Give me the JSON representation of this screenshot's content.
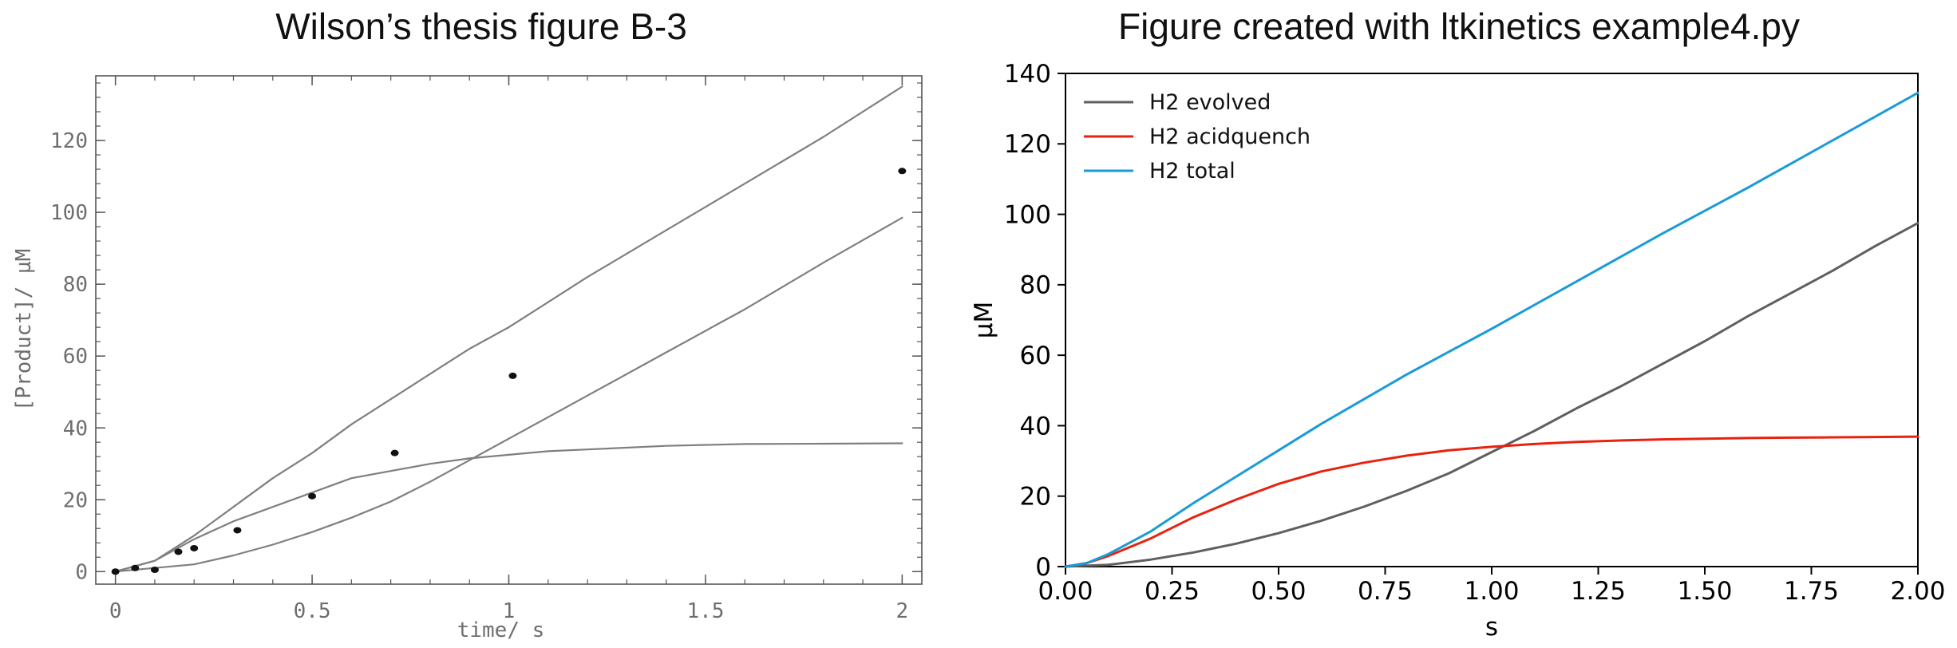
{
  "chart_data": [
    {
      "type": "line",
      "title": "Wilson’s thesis figure B-3",
      "xlabel": "time/ s",
      "ylabel": "[Product]/ µM",
      "xlim": [
        -0.05,
        2.05
      ],
      "ylim": [
        -3.5,
        138
      ],
      "xticks": [
        0,
        0.5,
        1,
        1.5,
        2
      ],
      "xtick_labels": [
        "0",
        "0.5",
        "1",
        "1.5",
        "2"
      ],
      "yticks": [
        0,
        20,
        40,
        60,
        80,
        100,
        120
      ],
      "ytick_labels": [
        "0",
        "20",
        "40",
        "60",
        "80",
        "100",
        "120"
      ],
      "grid": false,
      "series": [
        {
          "style": "line",
          "color": "#7f7f7f",
          "x": [
            0,
            0.1,
            0.2,
            0.3,
            0.4,
            0.5,
            0.6,
            0.7,
            0.8,
            0.9,
            1.0,
            1.2,
            1.4,
            1.6,
            1.8,
            2.0
          ],
          "values": [
            0,
            3,
            10,
            18,
            26,
            33,
            41,
            48,
            55,
            62,
            68,
            82,
            95,
            108,
            121,
            135
          ]
        },
        {
          "style": "line",
          "color": "#7f7f7f",
          "x": [
            0,
            0.1,
            0.2,
            0.3,
            0.4,
            0.5,
            0.6,
            0.7,
            0.8,
            0.9,
            1.0,
            1.1,
            1.2,
            1.4,
            1.6,
            1.8,
            2.0
          ],
          "values": [
            0,
            3,
            9,
            14,
            18,
            22,
            26,
            28,
            30,
            31.5,
            32.5,
            33.5,
            34,
            35,
            35.5,
            35.6,
            35.7
          ]
        },
        {
          "style": "line",
          "color": "#7f7f7f",
          "x": [
            0,
            0.2,
            0.3,
            0.4,
            0.5,
            0.6,
            0.7,
            0.8,
            0.9,
            1.0,
            1.2,
            1.4,
            1.6,
            1.8,
            2.0
          ],
          "values": [
            0,
            2,
            4.5,
            7.5,
            11,
            15,
            19.5,
            25,
            31,
            37,
            49,
            61,
            73,
            86,
            98.5
          ]
        },
        {
          "style": "points",
          "color": "#111111",
          "x": [
            0,
            0.05,
            0.1,
            0.16,
            0.2,
            0.31,
            0.5,
            0.71,
            1.01,
            2.0
          ],
          "values": [
            0,
            1,
            0.5,
            5.5,
            6.5,
            11.5,
            21,
            33,
            54.5,
            111.5
          ]
        }
      ]
    },
    {
      "type": "line",
      "title": "Figure created with ltkinetics example4.py",
      "xlabel": "s",
      "ylabel": "µM",
      "xlim": [
        0,
        2
      ],
      "ylim": [
        0,
        140
      ],
      "xticks": [
        0,
        0.25,
        0.5,
        0.75,
        1.0,
        1.25,
        1.5,
        1.75,
        2.0
      ],
      "xtick_labels": [
        "0.00",
        "0.25",
        "0.50",
        "0.75",
        "1.00",
        "1.25",
        "1.50",
        "1.75",
        "2.00"
      ],
      "yticks": [
        0,
        20,
        40,
        60,
        80,
        100,
        120,
        140
      ],
      "ytick_labels": [
        "0",
        "20",
        "40",
        "60",
        "80",
        "100",
        "120",
        "140"
      ],
      "grid": false,
      "legend": "top-left",
      "series": [
        {
          "name": "H2 evolved",
          "color": "#5f5f5f",
          "x": [
            0,
            0.1,
            0.2,
            0.3,
            0.4,
            0.5,
            0.6,
            0.7,
            0.8,
            0.9,
            1.0,
            1.1,
            1.2,
            1.3,
            1.4,
            1.5,
            1.6,
            1.7,
            1.8,
            1.9,
            2.0
          ],
          "values": [
            0,
            0.5,
            2,
            4,
            6.5,
            9.5,
            13,
            17,
            21.5,
            26.5,
            32.5,
            38.5,
            45,
            51,
            57.5,
            64,
            71,
            77.5,
            84,
            91,
            97.5
          ]
        },
        {
          "name": "H2 acidquench",
          "color": "#e8220f",
          "x": [
            0,
            0.05,
            0.1,
            0.2,
            0.3,
            0.4,
            0.5,
            0.6,
            0.7,
            0.8,
            0.9,
            1.0,
            1.1,
            1.2,
            1.3,
            1.4,
            1.5,
            1.6,
            1.7,
            1.8,
            1.9,
            2.0
          ],
          "values": [
            0,
            1,
            3,
            8,
            14,
            19,
            23.5,
            27,
            29.5,
            31.5,
            33,
            34,
            34.8,
            35.4,
            35.8,
            36.1,
            36.3,
            36.5,
            36.6,
            36.7,
            36.8,
            36.9
          ]
        },
        {
          "name": "H2 total",
          "color": "#1a9bd7",
          "x": [
            0,
            0.05,
            0.1,
            0.2,
            0.3,
            0.4,
            0.5,
            0.6,
            0.7,
            0.8,
            0.9,
            1.0,
            1.2,
            1.4,
            1.6,
            1.8,
            2.0
          ],
          "values": [
            0,
            1,
            3.5,
            10,
            18,
            25.5,
            33,
            40.5,
            47.5,
            54.5,
            61,
            67.5,
            81,
            94.5,
            107.5,
            121,
            134.5
          ]
        }
      ]
    }
  ]
}
